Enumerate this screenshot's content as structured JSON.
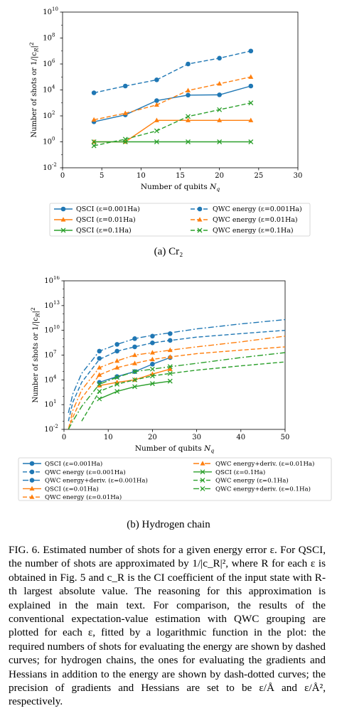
{
  "charts": [
    {
      "id": "cr2",
      "type": "line",
      "ylabel": "Number of shots or 1/|c_R|^2",
      "xlabel": "Number of qubits N_q",
      "x_scale": "linear",
      "y_scale": "log",
      "xlim": [
        0,
        30
      ],
      "ylim_exp": [
        -2,
        10
      ],
      "xticks": [
        0,
        5,
        10,
        15,
        20,
        25,
        30
      ],
      "ytick_exps": [
        -2,
        0,
        2,
        4,
        6,
        8,
        10
      ],
      "legend_cols": 2,
      "series": [
        {
          "name": "QSCI (ε=0.001Ha)",
          "color": "#1f77b4",
          "dash": "solid",
          "marker": "circle",
          "x": [
            4,
            8,
            12,
            16,
            20,
            24
          ],
          "y": [
            35,
            120,
            1500,
            4000,
            4200,
            20000
          ]
        },
        {
          "name": "QWC energy (ε=0.001Ha)",
          "color": "#1f77b4",
          "dash": "dashed",
          "marker": "circle",
          "x": [
            4,
            8,
            12,
            16,
            20,
            24
          ],
          "y": [
            6000,
            20000,
            60000,
            1000000,
            2800000,
            10000000
          ]
        },
        {
          "name": "QSCI (ε=0.01Ha)",
          "color": "#ff7f0e",
          "dash": "solid",
          "marker": "triangle",
          "x": [
            4,
            8,
            12,
            16,
            20,
            24
          ],
          "y": [
            1,
            1,
            45,
            45,
            45,
            45
          ]
        },
        {
          "name": "QWC energy (ε=0.01Ha)",
          "color": "#ff7f0e",
          "dash": "dashed",
          "marker": "triangle",
          "x": [
            4,
            8,
            12,
            16,
            20,
            24
          ],
          "y": [
            50,
            160,
            700,
            9000,
            30000,
            100000
          ]
        },
        {
          "name": "QSCI (ε=0.1Ha)",
          "color": "#2ca02c",
          "dash": "solid",
          "marker": "x",
          "x": [
            4,
            8,
            12,
            16,
            20,
            24
          ],
          "y": [
            1,
            1,
            1,
            1,
            1,
            1
          ]
        },
        {
          "name": "QWC energy (ε=0.1Ha)",
          "color": "#2ca02c",
          "dash": "dashed",
          "marker": "x",
          "x": [
            4,
            8,
            12,
            16,
            20,
            24
          ],
          "y": [
            0.5,
            1.6,
            7,
            90,
            300,
            1000
          ]
        }
      ],
      "legend_order": [
        0,
        2,
        4,
        1,
        3,
        5
      ]
    },
    {
      "id": "h-chain",
      "type": "line",
      "ylabel": "Number of shots or 1/|c_R|^2",
      "xlabel": "Number of qubits N_q",
      "x_scale": "linear",
      "y_scale": "log",
      "xlim": [
        0,
        50
      ],
      "ylim_exp": [
        -2,
        16
      ],
      "xticks": [
        0,
        10,
        20,
        30,
        40,
        50
      ],
      "ytick_exps": [
        -2,
        1,
        4,
        7,
        10,
        13,
        16
      ],
      "legend_cols": 2,
      "series": [
        {
          "name": "QSCI (ε=0.001Ha)",
          "color": "#1f77b4",
          "dash": "solid",
          "marker": "circle",
          "x": [
            8,
            12,
            16,
            20,
            24
          ],
          "y": [
            5000,
            25000,
            100000,
            800000,
            5000000
          ]
        },
        {
          "name": "QWC energy (ε=0.001Ha)",
          "color": "#1f77b4",
          "dash": "dashed",
          "marker": "circle",
          "x": [
            8,
            12,
            16,
            20,
            24
          ],
          "y": [
            4000000,
            30000000,
            100000000,
            300000000,
            600000000
          ],
          "fit": {
            "x": [
              1,
              2,
              4,
              8,
              12,
              16,
              20,
              24,
              30,
              40,
              50
            ],
            "y": [
              0.1,
              20,
              5000,
              3000000,
              30000000,
              100000000,
              300000000,
              600000000,
              1500000000,
              4000000000,
              10000000000
            ]
          }
        },
        {
          "name": "QWC energy+deriv. (ε=0.001Ha)",
          "color": "#1f77b4",
          "dash": "dashdot",
          "marker": "circle",
          "x": [
            8,
            12,
            16,
            20,
            24
          ],
          "y": [
            30000000,
            200000000,
            1000000000,
            2000000000,
            4000000000
          ],
          "fit": {
            "x": [
              1,
              2,
              4,
              8,
              12,
              16,
              20,
              24,
              30,
              40,
              50
            ],
            "y": [
              1,
              200,
              60000,
              30000000,
              200000000,
              1000000000,
              2500000000,
              5000000000,
              15000000000,
              60000000000,
              200000000000
            ]
          }
        },
        {
          "name": "QSCI (ε=0.01Ha)",
          "color": "#ff7f0e",
          "dash": "solid",
          "marker": "triangle",
          "x": [
            8,
            12,
            16,
            20,
            24
          ],
          "y": [
            2000,
            5000,
            10000,
            50000,
            200000
          ]
        },
        {
          "name": "QWC energy (ε=0.01Ha)",
          "color": "#ff7f0e",
          "dash": "dashed",
          "marker": "triangle",
          "x": [
            8,
            12,
            16,
            20,
            24
          ],
          "y": [
            40000,
            300000,
            1000000,
            3000000,
            6000000
          ],
          "fit": {
            "x": [
              1,
              2,
              4,
              8,
              12,
              16,
              20,
              24,
              30,
              40,
              50
            ],
            "y": [
              0.01,
              0.3,
              60,
              40000,
              300000,
              1000000,
              3000000,
              6000000,
              15000000,
              40000000,
              100000000
            ]
          }
        },
        {
          "name": "QWC energy+deriv. (ε=0.01Ha)",
          "color": "#ff7f0e",
          "dash": "dashdot",
          "marker": "triangle",
          "x": [
            8,
            12,
            16,
            20,
            24
          ],
          "y": [
            300000,
            2000000,
            10000000,
            20000000,
            40000000
          ],
          "fit": {
            "x": [
              1,
              2,
              4,
              8,
              12,
              16,
              20,
              24,
              30,
              40,
              50
            ],
            "y": [
              0.01,
              2,
              600,
              300000,
              2000000,
              10000000,
              20000000,
              40000000,
              100000000,
              400000000,
              2000000000
            ]
          }
        },
        {
          "name": "QSCI (ε=0.1Ha)",
          "color": "#2ca02c",
          "dash": "solid",
          "marker": "x",
          "x": [
            8,
            12,
            16,
            20,
            24
          ],
          "y": [
            50,
            400,
            1500,
            3500,
            7000
          ]
        },
        {
          "name": "QWC energy (ε=0.1Ha)",
          "color": "#2ca02c",
          "dash": "dashed",
          "marker": "x",
          "x": [
            8,
            12,
            16,
            20,
            24
          ],
          "y": [
            400,
            3000,
            10000,
            30000,
            60000
          ],
          "fit": {
            "x": [
              4,
              8,
              12,
              16,
              20,
              24,
              30,
              40,
              50
            ],
            "y": [
              0.1,
              400,
              3000,
              10000,
              30000,
              60000,
              150000,
              500000,
              1500000
            ]
          }
        },
        {
          "name": "QWC energy+deriv. (ε=0.1Ha)",
          "color": "#2ca02c",
          "dash": "dashdot",
          "marker": "x",
          "x": [
            8,
            12,
            16,
            20,
            24
          ],
          "y": [
            3000,
            20000,
            100000,
            200000,
            400000
          ],
          "fit": {
            "x": [
              1,
              2,
              4,
              8,
              12,
              16,
              20,
              24,
              30,
              40,
              50
            ],
            "y": [
              0.01,
              0.1,
              6,
              3000,
              20000,
              100000,
              200000,
              400000,
              1000000,
              5000000,
              20000000
            ]
          }
        }
      ],
      "legend_order": [
        0,
        1,
        2,
        3,
        4,
        5,
        6,
        7,
        8
      ]
    }
  ],
  "subcaptions": {
    "a": "(a) Cr₂",
    "b": "(b) Hydrogen chain"
  },
  "caption": "FIG. 6. Estimated number of shots for a given energy error ε. For QSCI, the number of shots are approximated by 1/|c_R|², where R for each ε is obtained in Fig. 5 and c_R is the CI coefficient of the input state with R-th largest absolute value. The reasoning for this approximation is explained in the main text. For comparison, the results of the conventional expectation-value estimation with QWC grouping are plotted for each ε, fitted by a logarithmic function in the plot: the required numbers of shots for evaluating the energy are shown by dashed curves; for hydrogen chains, the ones for evaluating the gradients and Hessians in addition to the energy are shown by dash-dotted curves; the precision of gradients and Hessians are set to be ε/Å and ε/Å², respectively."
}
